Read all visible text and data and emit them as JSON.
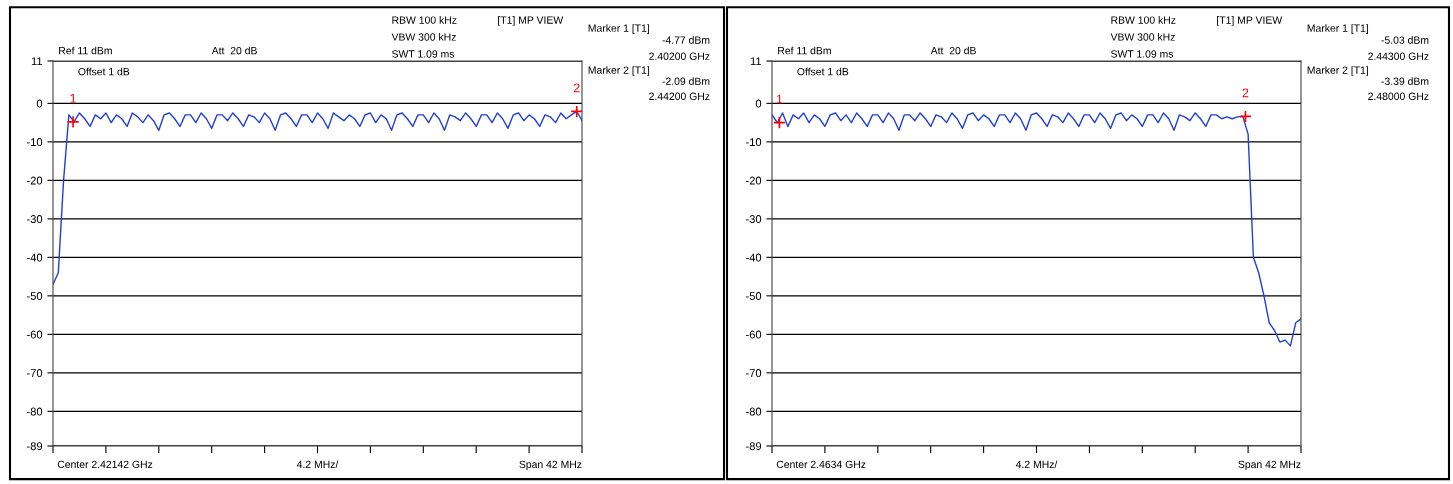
{
  "chart_data": [
    {
      "type": "line",
      "tick_labels": "y",
      "grid": "y",
      "annotations": [
        "Ref 11 dBm",
        "Att  20 dB",
        "Offset 1 dB",
        "RBW 100 kHz",
        "VBW 300 kHz",
        "SWT 1.09 ms",
        "[T1] MP VIEW",
        "Marker 1 [T1]",
        "-4.77 dBm",
        "2.40200 GHz",
        "Marker 2 [T1]",
        "-2.09 dBm",
        "2.44200 GHz",
        "Center 2.42142 GHz",
        "4.2 MHz/",
        "Span 42 MHz",
        "1",
        "2"
      ],
      "categories": [
        null,
        null,
        null,
        null,
        null,
        null,
        null,
        null,
        null,
        null,
        null,
        null,
        null,
        null,
        null,
        null,
        null,
        null,
        null,
        null,
        null,
        null,
        null,
        null,
        null,
        null,
        null,
        null,
        null,
        null,
        null,
        null,
        null,
        null,
        null,
        null,
        null,
        null,
        null,
        null,
        null,
        null,
        null,
        null,
        null,
        null,
        null,
        null,
        null,
        null,
        null,
        null,
        null,
        null,
        null,
        null,
        null,
        null,
        null,
        null,
        null,
        null,
        null,
        null,
        null,
        null,
        null,
        null,
        null,
        null,
        null,
        null,
        null,
        null,
        null,
        null,
        null,
        null,
        null,
        null,
        null,
        null,
        null,
        null,
        null,
        null,
        null,
        null,
        null,
        null,
        null,
        null,
        null,
        null,
        null,
        null,
        null,
        null,
        null,
        null,
        null
      ],
      "series": [
        {
          "color": "#1f3fd8",
          "values": [
            -47,
            -44,
            -20,
            -3,
            -4.77,
            -2.5,
            -4,
            -6,
            -3,
            -4,
            -2.5,
            -5,
            -3,
            -4,
            -6,
            -2.5,
            -3.5,
            -5,
            -3,
            -4.5,
            -7,
            -3,
            -2.5,
            -4,
            -6,
            -3,
            -3,
            -5,
            -2.5,
            -4,
            -6.5,
            -3,
            -3,
            -4.5,
            -2.5,
            -4,
            -6,
            -3,
            -3.5,
            -5,
            -2.5,
            -4,
            -7,
            -3,
            -2.5,
            -4,
            -6,
            -3,
            -3,
            -5,
            -2.5,
            -4,
            -6.5,
            -2.5,
            -3.5,
            -4.5,
            -3,
            -4,
            -6,
            -3,
            -2.5,
            -5,
            -3,
            -4,
            -7,
            -3,
            -2.5,
            -4,
            -6,
            -3,
            -3,
            -5,
            -2.5,
            -4,
            -7,
            -3,
            -3.5,
            -4.5,
            -2.5,
            -4,
            -6,
            -3,
            -3,
            -5,
            -2.5,
            -4,
            -6.5,
            -3,
            -2.5,
            -4.5,
            -3,
            -4,
            -6,
            -3,
            -3.5,
            -5,
            -2.5,
            -4,
            -3,
            -2.09,
            -4.5
          ]
        }
      ],
      "ylim": [
        -89,
        11
      ],
      "yticks": [
        11,
        0,
        -10,
        -20,
        -30,
        -40,
        -50,
        -60,
        -70,
        -80,
        -89
      ]
    },
    {
      "type": "line",
      "tick_labels": "y",
      "grid": "y",
      "annotations": [
        "Ref 11 dBm",
        "Att  20 dB",
        "Offset 1 dB",
        "RBW 100 kHz",
        "VBW 300 kHz",
        "SWT 1.09 ms",
        "[T1] MP VIEW",
        "Marker 1 [T1]",
        "-5.03 dBm",
        "2.44300 GHz",
        "Marker 2 [T1]",
        "-3.39 dBm",
        "2.48000 GHz",
        "Center 2.4634 GHz",
        "4.2 MHz/",
        "Span 42 MHz",
        "1",
        "2"
      ],
      "categories": [
        null,
        null,
        null,
        null,
        null,
        null,
        null,
        null,
        null,
        null,
        null,
        null,
        null,
        null,
        null,
        null,
        null,
        null,
        null,
        null,
        null,
        null,
        null,
        null,
        null,
        null,
        null,
        null,
        null,
        null,
        null,
        null,
        null,
        null,
        null,
        null,
        null,
        null,
        null,
        null,
        null,
        null,
        null,
        null,
        null,
        null,
        null,
        null,
        null,
        null,
        null,
        null,
        null,
        null,
        null,
        null,
        null,
        null,
        null,
        null,
        null,
        null,
        null,
        null,
        null,
        null,
        null,
        null,
        null,
        null,
        null,
        null,
        null,
        null,
        null,
        null,
        null,
        null,
        null,
        null,
        null,
        null,
        null,
        null,
        null,
        null,
        null,
        null,
        null,
        null,
        null,
        null,
        null,
        null,
        null,
        null,
        null,
        null,
        null,
        null,
        null
      ],
      "series": [
        {
          "color": "#1f3fd8",
          "values": [
            -3,
            -5.03,
            -2.5,
            -6,
            -3,
            -4,
            -2.5,
            -5,
            -3,
            -4,
            -6,
            -3,
            -2.5,
            -4.5,
            -3,
            -5,
            -2.5,
            -4,
            -6,
            -3,
            -3,
            -5,
            -2.5,
            -4,
            -7,
            -3,
            -3,
            -4.5,
            -2.5,
            -4,
            -6,
            -3,
            -3.5,
            -5,
            -2.5,
            -4,
            -6.5,
            -3,
            -2.5,
            -4.5,
            -3,
            -4,
            -6,
            -3,
            -3,
            -5,
            -2.5,
            -4,
            -7,
            -3,
            -2.5,
            -4,
            -6,
            -3,
            -3.5,
            -5,
            -2.5,
            -4,
            -6,
            -3,
            -3,
            -5,
            -2.5,
            -4,
            -6.5,
            -3,
            -2.5,
            -4.5,
            -3,
            -4,
            -6,
            -3,
            -3,
            -5,
            -2.5,
            -4,
            -7,
            -3,
            -3.5,
            -4.5,
            -2.5,
            -4,
            -6,
            -3,
            -3,
            -4,
            -3.5,
            -4,
            -3.5,
            -3.39,
            -8,
            -40,
            -44,
            -50,
            -57,
            -59,
            -62,
            -61.5,
            -63,
            -57,
            -56
          ]
        }
      ],
      "ylim": [
        -89,
        11
      ],
      "yticks": [
        11,
        0,
        -10,
        -20,
        -30,
        -40,
        -50,
        -60,
        -70,
        -80,
        -89
      ]
    }
  ]
}
